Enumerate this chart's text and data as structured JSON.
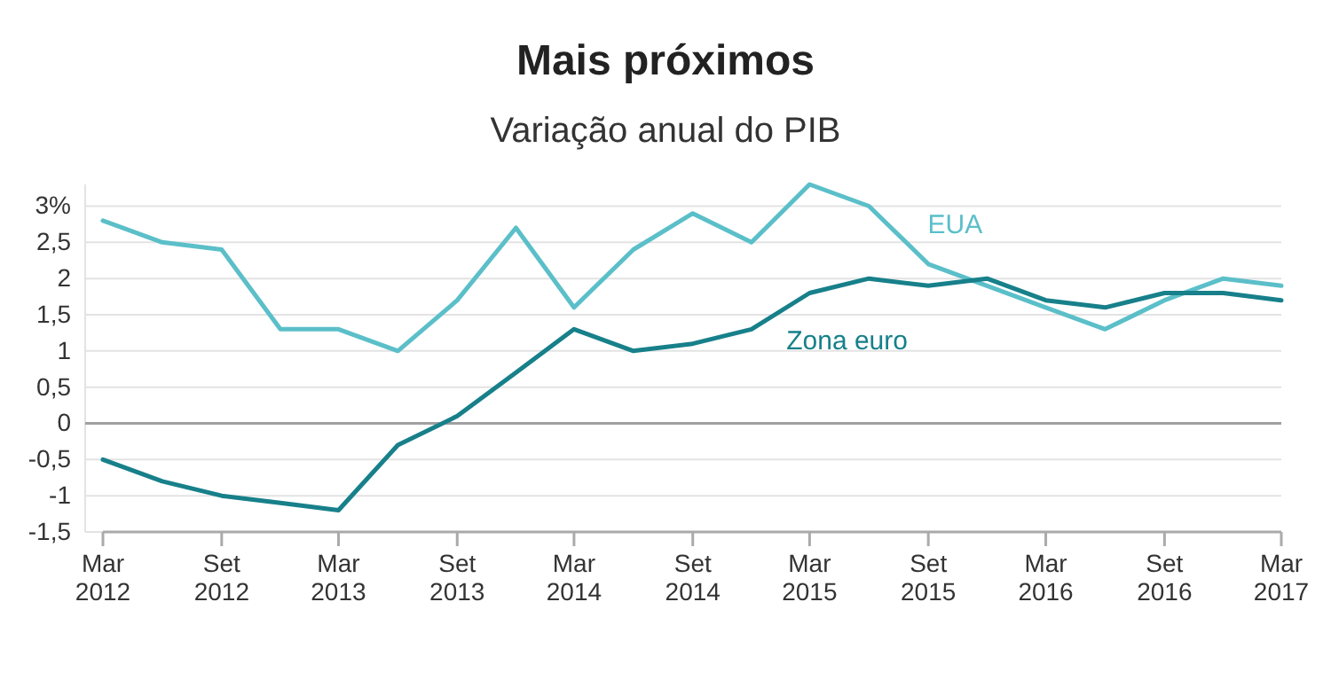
{
  "chart_data": {
    "type": "line",
    "title": "Mais próximos",
    "subtitle": "Variação anual do PIB",
    "x": [
      "2012-03",
      "2012-06",
      "2012-09",
      "2012-12",
      "2013-03",
      "2013-06",
      "2013-09",
      "2013-12",
      "2014-03",
      "2014-06",
      "2014-09",
      "2014-12",
      "2015-03",
      "2015-06",
      "2015-09",
      "2015-12",
      "2016-03",
      "2016-06",
      "2016-09",
      "2016-12",
      "2017-03"
    ],
    "series": [
      {
        "name": "EUA",
        "color": "#5bbfc9",
        "values": [
          2.8,
          2.5,
          2.4,
          1.3,
          1.3,
          1.0,
          1.7,
          2.7,
          1.6,
          2.4,
          2.9,
          2.5,
          3.3,
          3.0,
          2.2,
          1.9,
          1.6,
          1.3,
          1.7,
          2.0,
          1.9
        ]
      },
      {
        "name": "Zona euro",
        "color": "#17808a",
        "values": [
          -0.5,
          -0.8,
          -1.0,
          -1.1,
          -1.2,
          -0.3,
          0.1,
          0.7,
          1.3,
          1.0,
          1.1,
          1.3,
          1.8,
          2.0,
          1.9,
          2.0,
          1.7,
          1.6,
          1.8,
          1.8,
          1.7
        ]
      }
    ],
    "xlim": [
      "2012-03",
      "2017-03"
    ],
    "xticks": [
      {
        "value": "2012-03",
        "label": "Mar 2012"
      },
      {
        "value": "2012-09",
        "label": "Set 2012"
      },
      {
        "value": "2013-03",
        "label": "Mar 2013"
      },
      {
        "value": "2013-09",
        "label": "Set 2013"
      },
      {
        "value": "2014-03",
        "label": "Mar 2014"
      },
      {
        "value": "2014-09",
        "label": "Set 2014"
      },
      {
        "value": "2015-03",
        "label": "Mar 2015"
      },
      {
        "value": "2015-09",
        "label": "Set 2015"
      },
      {
        "value": "2016-03",
        "label": "Mar 2016"
      },
      {
        "value": "2016-09",
        "label": "Set 2016"
      },
      {
        "value": "2017-03",
        "label": "Mar 2017"
      }
    ],
    "ylim": [
      -1.5,
      3.3
    ],
    "yticks": [
      {
        "value": -1.5,
        "label": "-1,5"
      },
      {
        "value": -1,
        "label": "-1"
      },
      {
        "value": -0.5,
        "label": "-0,5"
      },
      0,
      {
        "value": 0.5,
        "label": "0,5"
      },
      1,
      {
        "value": 1.5,
        "label": "1,5"
      },
      2,
      {
        "value": 2.5,
        "label": "2,5"
      },
      {
        "value": 3,
        "label": "3%"
      }
    ],
    "ref_lines": [
      {
        "axis": "y",
        "value": 0,
        "color": "#a0a0a0"
      }
    ],
    "grid": "y",
    "legend": false,
    "marker": "none",
    "line_style": "solid"
  }
}
